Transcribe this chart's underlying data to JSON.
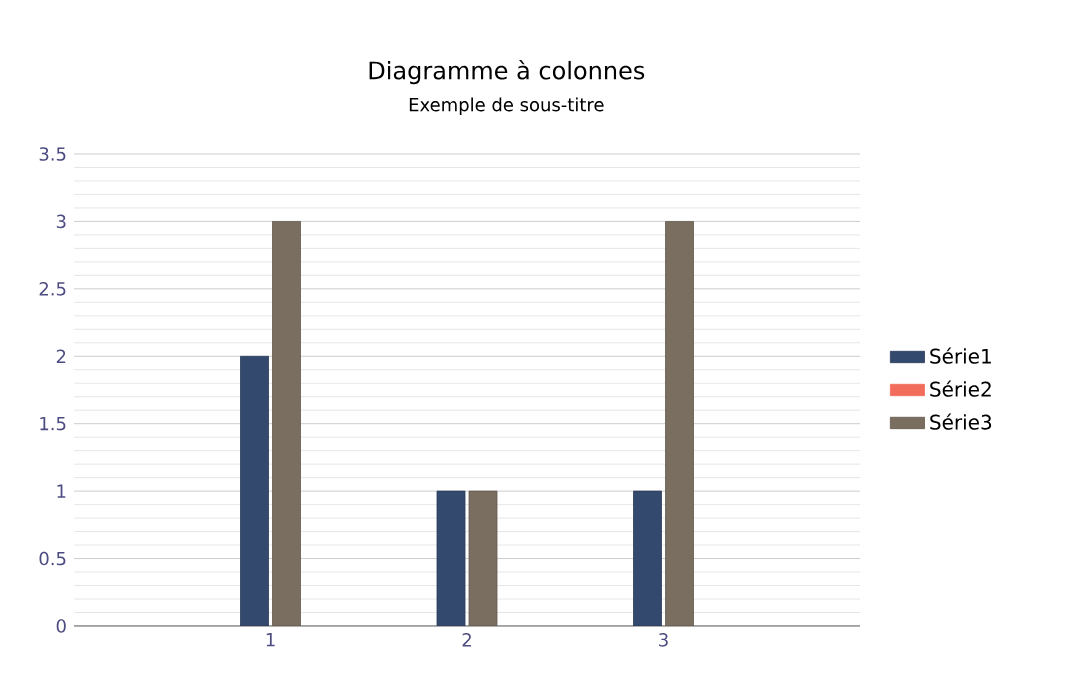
{
  "chart_data": {
    "type": "bar",
    "title": "Diagramme à colonnes",
    "subtitle": "Exemple de sous-titre",
    "categories": [
      "1",
      "2",
      "3"
    ],
    "series": [
      {
        "name": "Série1",
        "color": "#34496e",
        "values": [
          2,
          1,
          1
        ]
      },
      {
        "name": "Série2",
        "color": "#f26c5c",
        "values": [
          null,
          null,
          null
        ]
      },
      {
        "name": "Série3",
        "color": "#7a6e60",
        "values": [
          3,
          1,
          3
        ]
      }
    ],
    "ylim": [
      0,
      3.5
    ],
    "yticks": [
      0,
      0.5,
      1,
      1.5,
      2,
      2.5,
      3,
      3.5
    ],
    "grid": "y",
    "legend": "right"
  }
}
